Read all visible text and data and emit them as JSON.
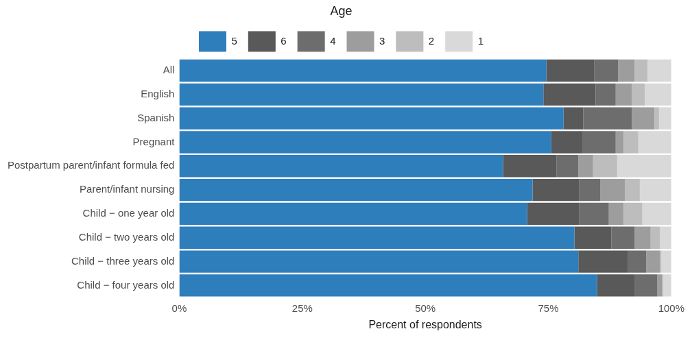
{
  "chart_data": {
    "type": "bar",
    "orientation": "horizontal",
    "stacked": true,
    "xlabel": "Percent of respondents",
    "legend_title": "Age",
    "legend": "top",
    "categories": [
      "All",
      "English",
      "Spanish",
      "Pregnant",
      "Postpartum parent/infant formula fed",
      "Parent/infant nursing",
      "Child − one year old",
      "Child − two years old",
      "Child − three years old",
      "Child − four years old"
    ],
    "xlim": [
      0,
      100
    ],
    "xticks": [
      {
        "value": 0,
        "label": "0%"
      },
      {
        "value": 25,
        "label": "25%"
      },
      {
        "value": 50,
        "label": "50%"
      },
      {
        "value": 75,
        "label": "75%"
      },
      {
        "value": 100,
        "label": "100%"
      }
    ],
    "grid": false,
    "series": [
      {
        "name": "5",
        "color": "#2e7ebc",
        "values": [
          74.6,
          74.0,
          78.1,
          75.6,
          65.8,
          71.8,
          70.7,
          80.3,
          81.1,
          84.9
        ]
      },
      {
        "name": "6",
        "color": "#595959",
        "values": [
          9.7,
          10.6,
          4.0,
          6.3,
          10.9,
          9.5,
          10.6,
          7.5,
          10.0,
          7.6
        ]
      },
      {
        "name": "4",
        "color": "#6d6d6d",
        "values": [
          4.9,
          4.1,
          9.9,
          6.8,
          4.4,
          4.3,
          6.0,
          4.7,
          3.8,
          4.6
        ]
      },
      {
        "name": "3",
        "color": "#9d9d9d",
        "values": [
          3.3,
          3.3,
          4.6,
          1.6,
          3.0,
          5.0,
          3.0,
          3.3,
          2.8,
          1.0
        ]
      },
      {
        "name": "2",
        "color": "#bdbdbd",
        "values": [
          2.7,
          2.6,
          0.9,
          3.0,
          4.9,
          3.0,
          3.8,
          1.9,
          0.3,
          0.3
        ]
      },
      {
        "name": "1",
        "color": "#d9d9d9",
        "values": [
          4.8,
          5.4,
          2.5,
          6.7,
          11.0,
          6.4,
          5.9,
          2.3,
          2.0,
          1.6
        ]
      }
    ]
  }
}
